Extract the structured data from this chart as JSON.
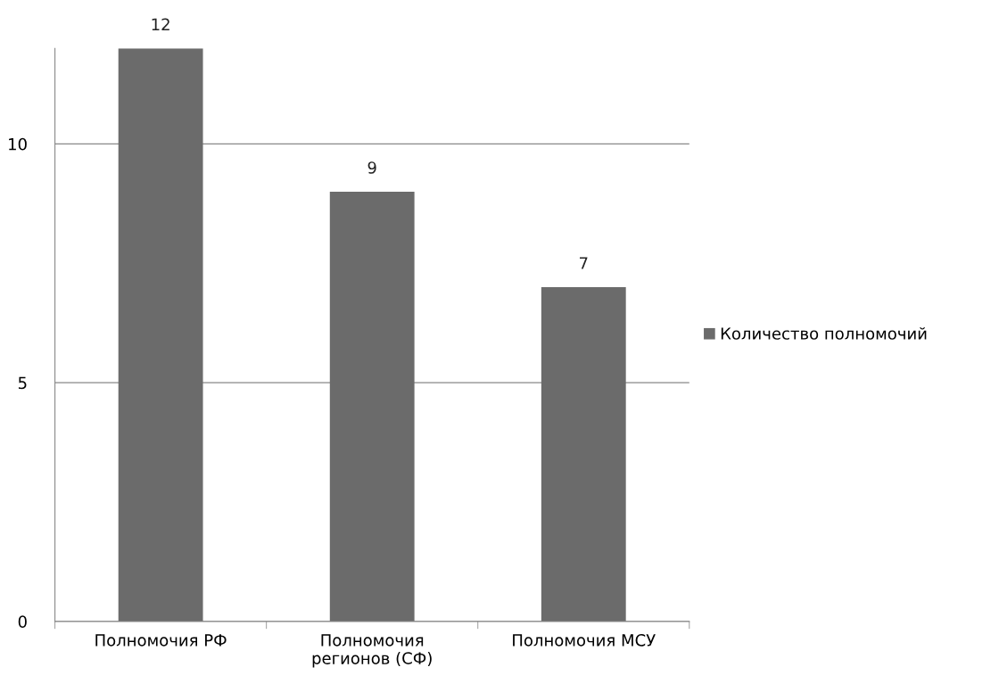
{
  "chart_data": {
    "type": "bar",
    "categories": [
      "Полномочия РФ",
      "Полномочия\nрегионов (СФ)",
      "Полномочия МСУ"
    ],
    "series": [
      {
        "name": "Количество полномочий",
        "color": "#6b6b6b",
        "values": [
          12,
          9,
          7
        ]
      }
    ],
    "ylim": [
      0,
      12
    ],
    "yticks": [
      0,
      5,
      10
    ],
    "grid": "y",
    "legend": "right",
    "data_labels": true
  }
}
